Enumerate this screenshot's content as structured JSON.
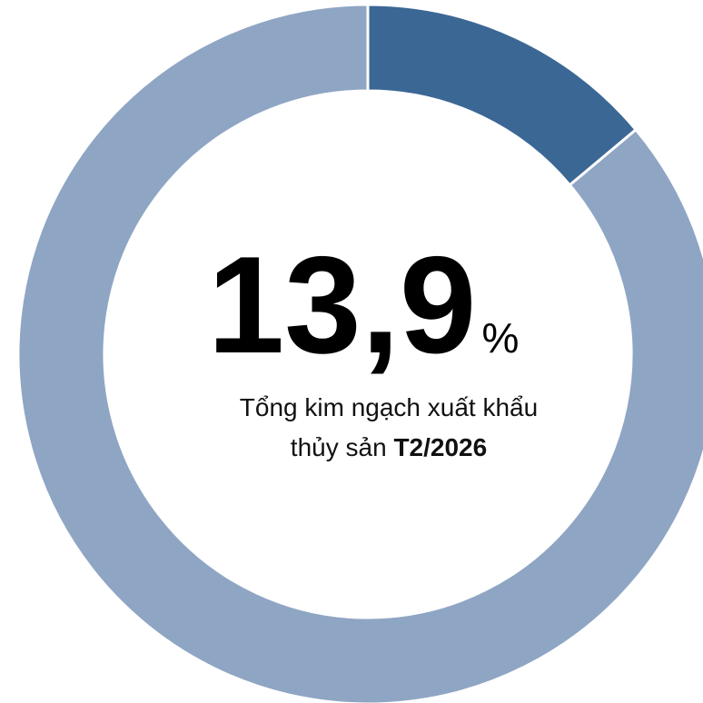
{
  "chart_data": {
    "type": "donut",
    "values": [
      13.9,
      86.1
    ],
    "colors": [
      "#3b6795",
      "#8fa5c4"
    ],
    "value_labels": [
      "13,9%",
      null
    ],
    "subtitle_lines": [
      "Tổng kim ngạch xuất khẩu",
      "thủy sản"
    ],
    "period": "T2/2026"
  }
}
